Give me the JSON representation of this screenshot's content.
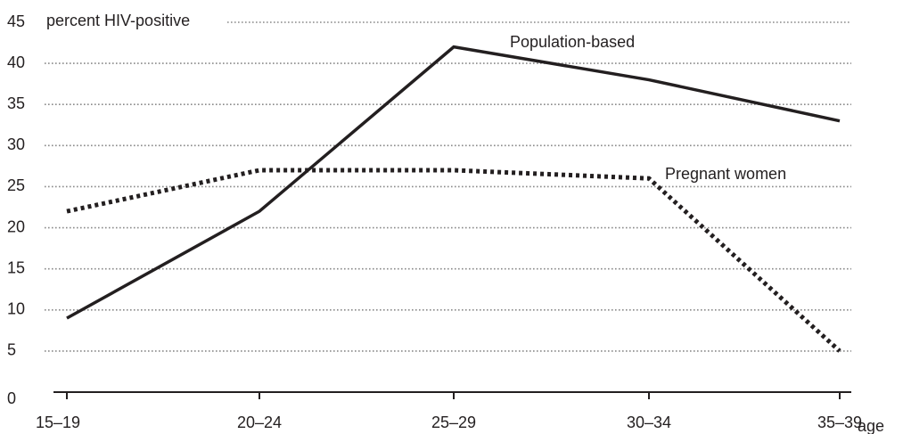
{
  "chart_data": {
    "type": "line",
    "y_axis_title": "percent HIV-positive",
    "x_axis_title": "age",
    "categories": [
      "15–19",
      "20–24",
      "25–29",
      "30–34",
      "35–39"
    ],
    "series": [
      {
        "name": "Population-based",
        "color": "#231f20",
        "line_style": "solid",
        "values": [
          9,
          22,
          42,
          38,
          33
        ]
      },
      {
        "name": "Pregnant women",
        "color": "#231f20",
        "line_style": "dotted",
        "values": [
          22,
          27,
          27,
          26,
          5
        ]
      }
    ],
    "ylim": [
      0,
      45
    ],
    "yticks": [
      0,
      5,
      10,
      15,
      20,
      25,
      30,
      35,
      40,
      45
    ],
    "grid": true
  }
}
